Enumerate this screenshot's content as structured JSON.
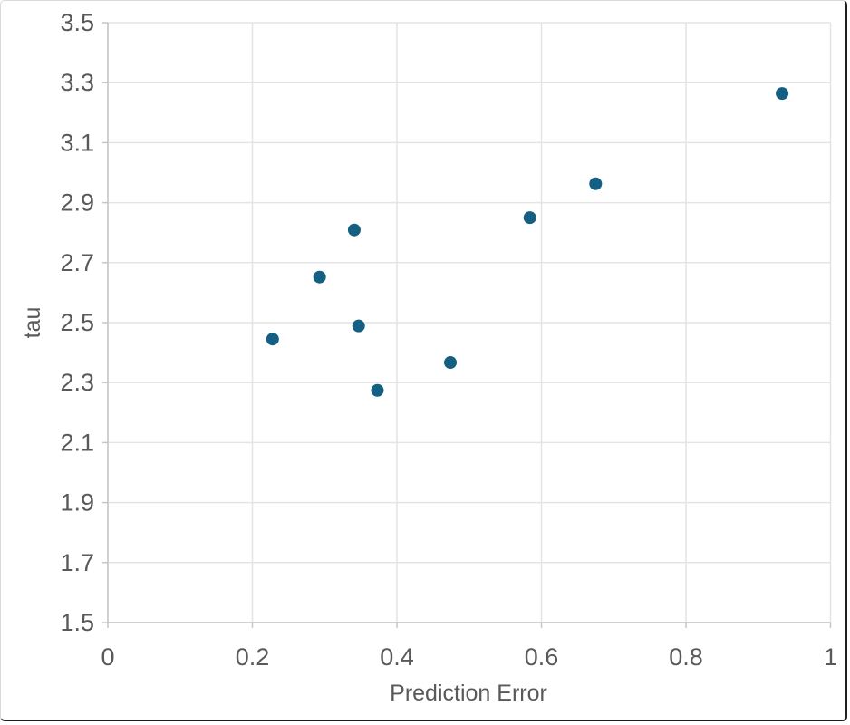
{
  "chart_data": {
    "type": "scatter",
    "title": "",
    "xlabel": "Prediction Error",
    "ylabel": "tau",
    "xlim": [
      0,
      1
    ],
    "ylim": [
      1.5,
      3.5
    ],
    "x_ticks": [
      {
        "value": 0,
        "label": "0"
      },
      {
        "value": 0.2,
        "label": "0.2"
      },
      {
        "value": 0.4,
        "label": "0.4"
      },
      {
        "value": 0.6,
        "label": "0.6"
      },
      {
        "value": 0.8,
        "label": "0.8"
      },
      {
        "value": 1,
        "label": "1"
      }
    ],
    "y_ticks": [
      {
        "value": 1.5,
        "label": "1.5"
      },
      {
        "value": 1.7,
        "label": "1.7"
      },
      {
        "value": 1.9,
        "label": "1.9"
      },
      {
        "value": 2.1,
        "label": "2.1"
      },
      {
        "value": 2.3,
        "label": "2.3"
      },
      {
        "value": 2.5,
        "label": "2.5"
      },
      {
        "value": 2.7,
        "label": "2.7"
      },
      {
        "value": 2.9,
        "label": "2.9"
      },
      {
        "value": 3.1,
        "label": "3.1"
      },
      {
        "value": 3.3,
        "label": "3.3"
      },
      {
        "value": 3.5,
        "label": "3.5"
      }
    ],
    "grid": true,
    "legend": "none",
    "marker": {
      "shape": "circle",
      "radius_px": 7,
      "color": "#156082"
    },
    "points": [
      {
        "x": 0.228,
        "y": 2.445
      },
      {
        "x": 0.293,
        "y": 2.652
      },
      {
        "x": 0.341,
        "y": 2.809
      },
      {
        "x": 0.347,
        "y": 2.489
      },
      {
        "x": 0.373,
        "y": 2.274
      },
      {
        "x": 0.474,
        "y": 2.367
      },
      {
        "x": 0.584,
        "y": 2.85
      },
      {
        "x": 0.675,
        "y": 2.963
      },
      {
        "x": 0.933,
        "y": 3.264
      }
    ]
  },
  "style": {
    "background": "#ffffff",
    "grid_color": "#e4e4e4",
    "axis_color": "#c6c6c6",
    "label_color": "#595959",
    "frame_light": "#d9d9d9",
    "frame_dark": "#1f1f1f"
  }
}
